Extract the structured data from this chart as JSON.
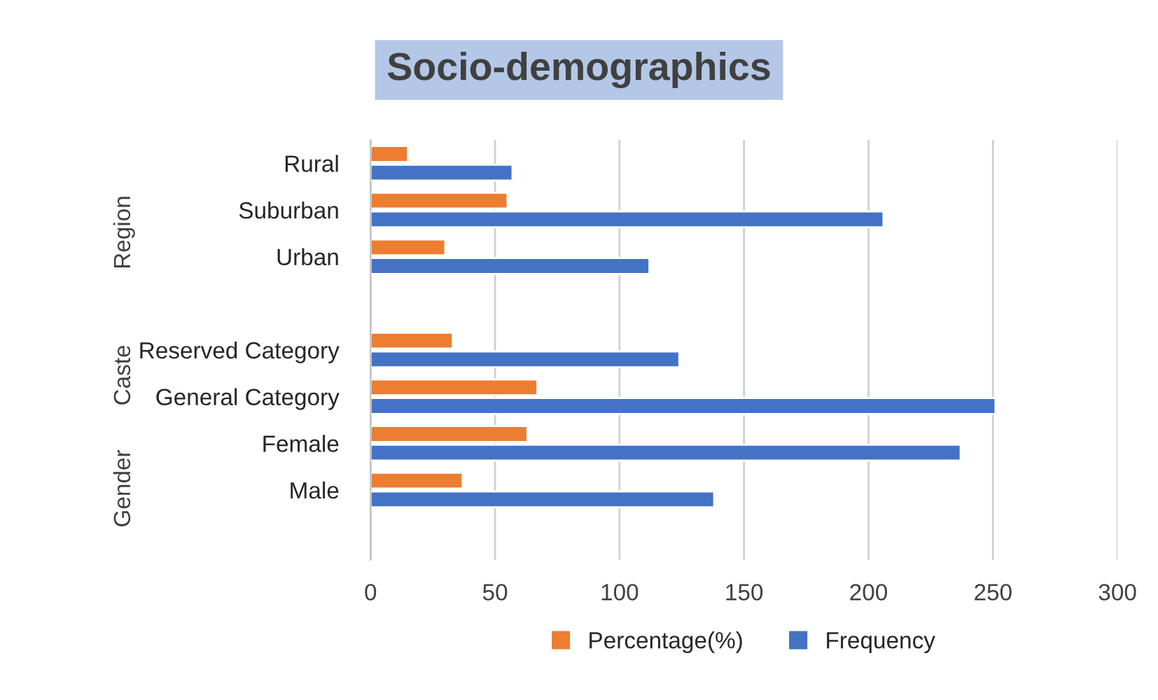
{
  "chart_data": {
    "type": "bar",
    "orientation": "horizontal",
    "title": "Socio-demographics",
    "categories": [
      "Rural",
      "Suburban",
      "Urban",
      null,
      "Reserved Category",
      "General Category",
      "Female",
      "Male",
      null
    ],
    "series": [
      {
        "name": "Percentage(%)",
        "color": "#ed7d31",
        "values": [
          15,
          55,
          30,
          null,
          33,
          67,
          63,
          37,
          null
        ]
      },
      {
        "name": "Frequency",
        "color": "#4472c4",
        "values": [
          57,
          206,
          112,
          null,
          124,
          251,
          237,
          138,
          null
        ]
      }
    ],
    "xlim": [
      0,
      300
    ],
    "xticks": [
      0,
      50,
      100,
      150,
      200,
      250,
      300
    ],
    "grid": "x",
    "legend": "bottom",
    "annotations": [
      "Region",
      "Caste",
      "Gender"
    ]
  }
}
